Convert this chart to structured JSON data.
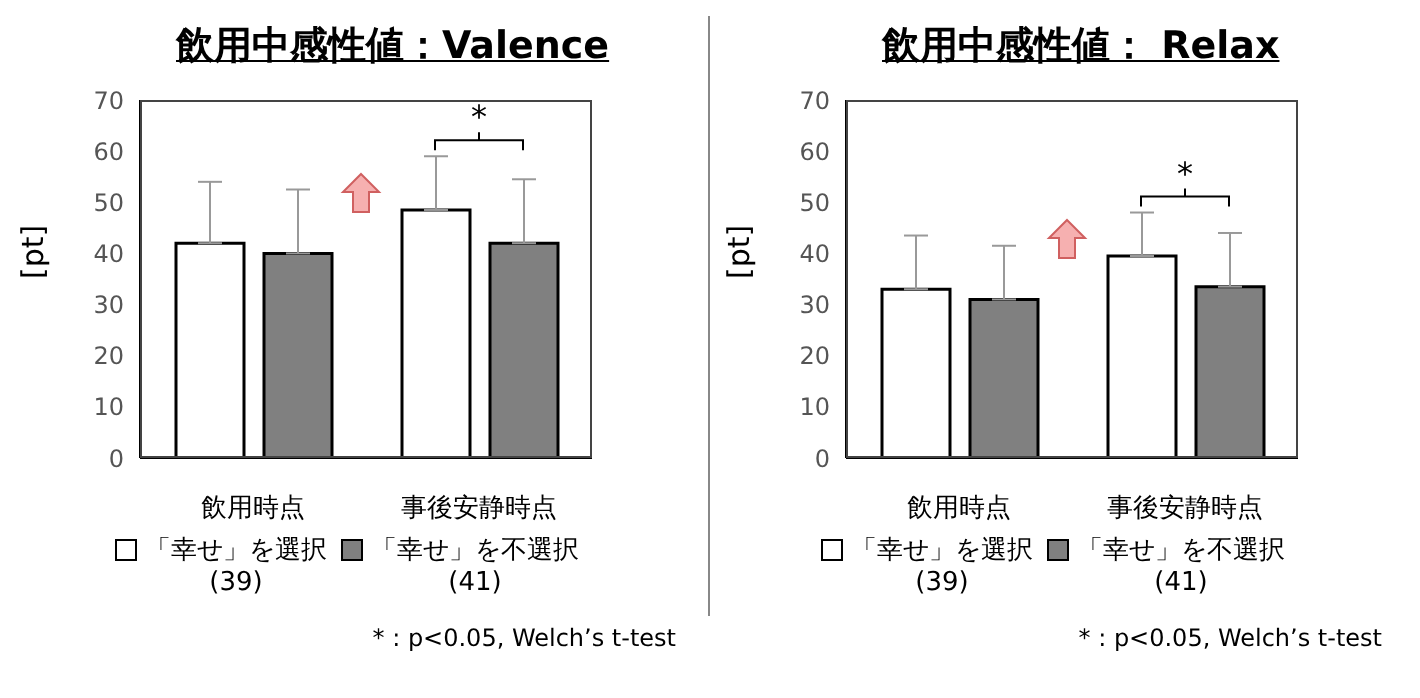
{
  "chart_data": [
    {
      "type": "bar",
      "title": "飲用中感性値：Valence",
      "ylabel": "[pt]",
      "categories": [
        "飲用時点",
        "事後安静時点"
      ],
      "series": [
        {
          "name": "「幸せ」を選択\n(39)",
          "color": "#ffffff",
          "values": [
            42,
            48.5
          ],
          "errors": [
            [
              42,
              54
            ],
            [
              48.5,
              59
            ]
          ]
        },
        {
          "name": "「幸せ」を不選択\n(41)",
          "color": "#808080",
          "values": [
            40,
            42
          ],
          "errors": [
            [
              40,
              52.5
            ],
            [
              42,
              54.5
            ]
          ]
        }
      ],
      "ylim": [
        0,
        70
      ],
      "yticks": [
        0,
        10,
        20,
        30,
        40,
        50,
        60,
        70
      ],
      "grid": false,
      "legend": "bottom",
      "annotations": [
        "*",
        "* : p<0.05, Welch’s t-test"
      ]
    },
    {
      "type": "bar",
      "title": "飲用中感性値： Relax",
      "ylabel": "[pt]",
      "categories": [
        "飲用時点",
        "事後安静時点"
      ],
      "series": [
        {
          "name": "「幸せ」を選択\n(39)",
          "color": "#ffffff",
          "values": [
            33,
            39.5
          ],
          "errors": [
            [
              33,
              43.5
            ],
            [
              39.5,
              48
            ]
          ]
        },
        {
          "name": "「幸せ」を不選択\n(41)",
          "color": "#808080",
          "values": [
            31,
            33.5
          ],
          "errors": [
            [
              31,
              41.5
            ],
            [
              33.5,
              44
            ]
          ]
        }
      ],
      "ylim": [
        0,
        70
      ],
      "yticks": [
        0,
        10,
        20,
        30,
        40,
        50,
        60,
        70
      ],
      "grid": false,
      "legend": "bottom",
      "annotations": [
        "*",
        "* : p<0.05, Welch’s t-test"
      ]
    }
  ]
}
